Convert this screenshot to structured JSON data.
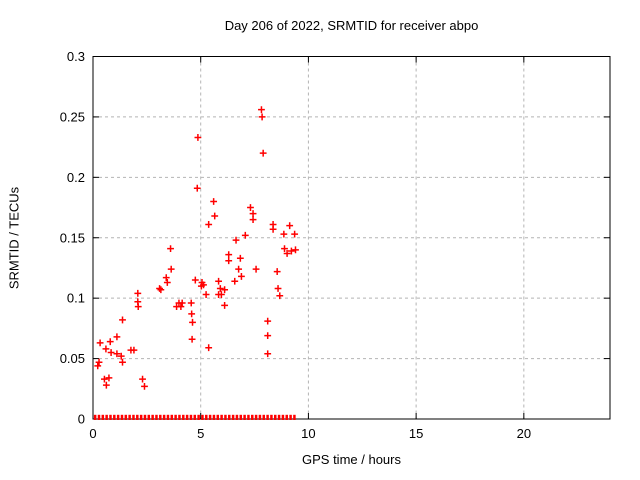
{
  "title": "Day 206 of 2022, SRMTID for receiver abpo",
  "x_axis": {
    "label": "GPS time / hours",
    "tick_labels": [
      "0",
      "5",
      "10",
      "15",
      "20"
    ],
    "tick_values": [
      0,
      5,
      10,
      15,
      20
    ],
    "range": [
      0,
      24
    ]
  },
  "y_axis": {
    "label": "SRMTID / TECUs",
    "tick_labels": [
      "0",
      "0.05",
      "0.1",
      "0.15",
      "0.2",
      "0.25",
      "0.3"
    ],
    "tick_values": [
      0,
      0.05,
      0.1,
      0.15,
      0.2,
      0.25,
      0.3
    ],
    "range": [
      0,
      0.3
    ]
  },
  "colors": {
    "marker": "#ff0000",
    "grid": "#b4b4b4",
    "axis": "#000000",
    "background": "#ffffff",
    "text": "#000000"
  },
  "chart_data": {
    "type": "scatter",
    "marker_style": "plus",
    "title": "Day 206 of 2022, SRMTID for receiver abpo",
    "xlabel": "GPS time / hours",
    "ylabel": "SRMTID / TECUs",
    "xlim": [
      0,
      24
    ],
    "ylim": [
      0,
      0.3
    ],
    "grid": "dashed at major ticks",
    "points": [
      [
        0.22,
        0.044
      ],
      [
        0.28,
        0.047
      ],
      [
        0.33,
        0.063
      ],
      [
        0.53,
        0.033
      ],
      [
        0.6,
        0.058
      ],
      [
        0.62,
        0.028
      ],
      [
        0.74,
        0.034
      ],
      [
        0.8,
        0.064
      ],
      [
        0.84,
        0.055
      ],
      [
        1.11,
        0.068
      ],
      [
        1.11,
        0.054
      ],
      [
        1.31,
        0.052
      ],
      [
        1.37,
        0.047
      ],
      [
        1.37,
        0.082
      ],
      [
        1.76,
        0.057
      ],
      [
        1.9,
        0.057
      ],
      [
        2.08,
        0.104
      ],
      [
        2.08,
        0.097
      ],
      [
        2.1,
        0.093
      ],
      [
        2.3,
        0.033
      ],
      [
        2.39,
        0.027
      ],
      [
        3.09,
        0.108
      ],
      [
        3.15,
        0.107
      ],
      [
        3.4,
        0.117
      ],
      [
        3.45,
        0.113
      ],
      [
        3.6,
        0.141
      ],
      [
        3.63,
        0.124
      ],
      [
        3.88,
        0.093
      ],
      [
        3.99,
        0.096
      ],
      [
        4.08,
        0.093
      ],
      [
        4.14,
        0.096
      ],
      [
        4.56,
        0.096
      ],
      [
        4.58,
        0.087
      ],
      [
        4.6,
        0.066
      ],
      [
        4.62,
        0.08
      ],
      [
        4.75,
        0.115
      ],
      [
        4.84,
        0.191
      ],
      [
        4.87,
        0.233
      ],
      [
        5.03,
        0.11
      ],
      [
        5.06,
        0.113
      ],
      [
        5.13,
        0.111
      ],
      [
        5.25,
        0.103
      ],
      [
        5.37,
        0.161
      ],
      [
        5.37,
        0.059
      ],
      [
        5.6,
        0.18
      ],
      [
        5.65,
        0.168
      ],
      [
        5.83,
        0.114
      ],
      [
        5.83,
        0.103
      ],
      [
        5.91,
        0.108
      ],
      [
        5.96,
        0.103
      ],
      [
        6.11,
        0.107
      ],
      [
        6.11,
        0.094
      ],
      [
        6.3,
        0.136
      ],
      [
        6.3,
        0.131
      ],
      [
        6.58,
        0.114
      ],
      [
        6.64,
        0.148
      ],
      [
        6.76,
        0.124
      ],
      [
        6.84,
        0.133
      ],
      [
        6.89,
        0.118
      ],
      [
        7.07,
        0.152
      ],
      [
        7.31,
        0.175
      ],
      [
        7.43,
        0.17
      ],
      [
        7.43,
        0.165
      ],
      [
        7.57,
        0.124
      ],
      [
        7.82,
        0.256
      ],
      [
        7.85,
        0.25
      ],
      [
        7.9,
        0.22
      ],
      [
        8.11,
        0.081
      ],
      [
        8.11,
        0.069
      ],
      [
        8.11,
        0.054
      ],
      [
        8.36,
        0.161
      ],
      [
        8.36,
        0.157
      ],
      [
        8.55,
        0.122
      ],
      [
        8.59,
        0.108
      ],
      [
        8.67,
        0.102
      ],
      [
        8.86,
        0.153
      ],
      [
        8.89,
        0.141
      ],
      [
        9.01,
        0.137
      ],
      [
        9.13,
        0.16
      ],
      [
        9.21,
        0.139
      ],
      [
        9.36,
        0.153
      ],
      [
        9.4,
        0.14
      ]
    ],
    "zero_row": {
      "comment_visible_as": "dense row of red markers along y=0",
      "start_hour": 0.1,
      "end_hour": 9.35,
      "count": 53,
      "value": 0
    }
  }
}
